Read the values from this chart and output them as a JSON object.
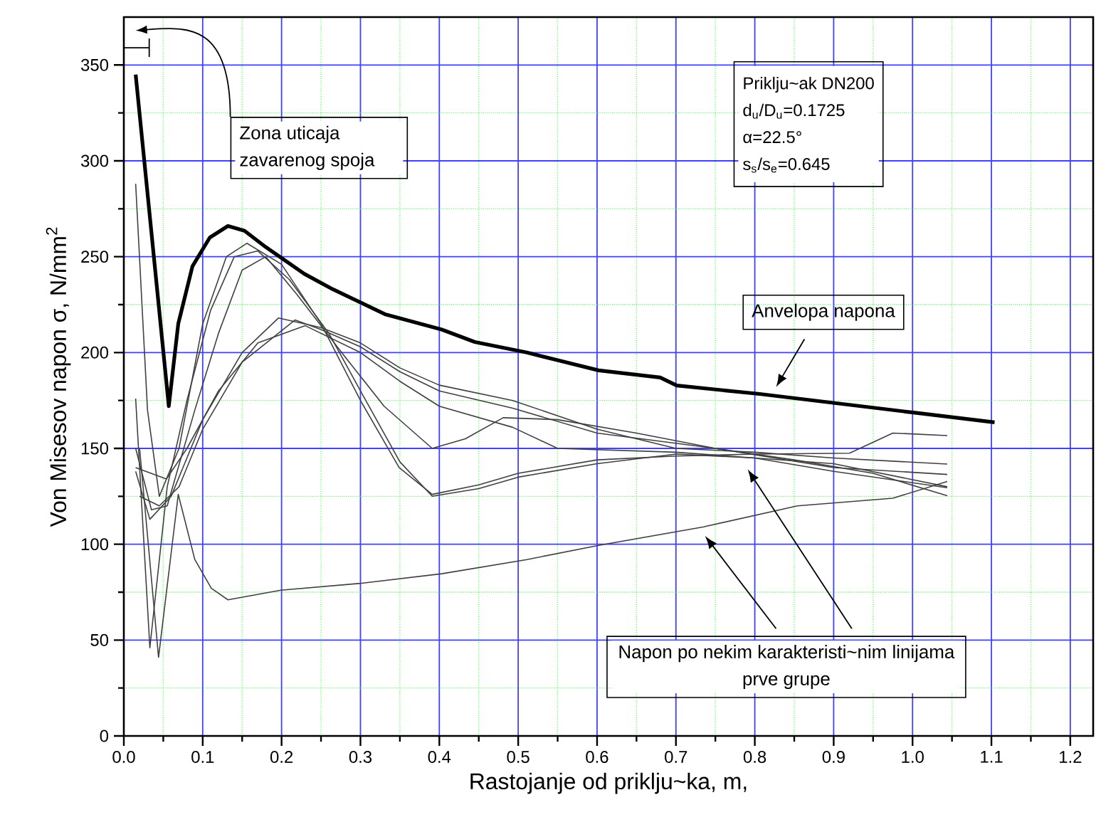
{
  "chart_data": {
    "type": "line",
    "xlabel": "Rastojanje od priklju~ka, m,",
    "ylabel": "Von Misesov napon σ, N/mm$^{2}$",
    "xlim": [
      0,
      1.229
    ],
    "ylim": [
      0,
      375
    ],
    "xticks": [
      {
        "value": 0,
        "label": "0.0"
      },
      {
        "value": 0.05,
        "label": null
      },
      0.1,
      {
        "value": 0.15,
        "label": null
      },
      0.2,
      {
        "value": 0.25,
        "label": null
      },
      0.3,
      {
        "value": 0.35,
        "label": null
      },
      0.4,
      {
        "value": 0.45,
        "label": null
      },
      0.5,
      {
        "value": 0.55,
        "label": null
      },
      0.6,
      {
        "value": 0.65,
        "label": null
      },
      0.7,
      {
        "value": 0.75,
        "label": null
      },
      0.8,
      {
        "value": 0.85,
        "label": null
      },
      0.9,
      {
        "value": 0.95,
        "label": null
      },
      {
        "value": 1,
        "label": "1.0"
      },
      {
        "value": 1.05,
        "label": null
      },
      1.1,
      {
        "value": 1.15,
        "label": null
      },
      1.2
    ],
    "yticks": [
      0,
      {
        "value": 25,
        "label": null
      },
      50,
      {
        "value": 75,
        "label": null
      },
      100,
      {
        "value": 125,
        "label": null
      },
      150,
      {
        "value": 175,
        "label": null
      },
      200,
      {
        "value": 225,
        "label": null
      },
      250,
      {
        "value": 275,
        "label": null
      },
      300,
      {
        "value": 325,
        "label": null
      },
      350
    ],
    "grid": true,
    "series": [
      {
        "color": "#000000",
        "x": [
          0.015,
          0.057,
          0.069,
          0.087,
          0.109,
          0.132,
          0.153,
          0.18,
          0.229,
          0.265,
          0.331,
          0.403,
          0.445,
          0.511,
          0.602,
          0.68,
          0.701,
          0.806,
          1.005,
          1.104
        ],
        "values": [
          345,
          172,
          215,
          245,
          260,
          266,
          263.5,
          255,
          241,
          233,
          220,
          212,
          205.5,
          200,
          190.7,
          187,
          182.8,
          178.4,
          168.5,
          163.6
        ]
      },
      {
        "color": "#404040",
        "x": [
          0.015,
          0.03,
          0.045,
          0.07,
          0.1,
          0.13,
          0.156,
          0.2,
          0.25,
          0.3,
          0.349,
          0.391,
          0.45,
          0.5,
          0.6,
          0.7,
          0.8,
          0.92,
          0.975,
          1.044
        ],
        "values": [
          288,
          170,
          125,
          150,
          215,
          250,
          257,
          246,
          215,
          175,
          140,
          126,
          131,
          137,
          144,
          146,
          147,
          147.5,
          158,
          156.7
        ]
      },
      {
        "color": "#404040",
        "x": [
          0.015,
          0.033,
          0.055,
          0.08,
          0.11,
          0.14,
          0.17,
          0.21,
          0.26,
          0.3,
          0.35,
          0.391,
          0.45,
          0.5,
          0.6,
          0.7,
          0.8,
          0.9,
          1.044
        ],
        "values": [
          176,
          46,
          130,
          175,
          222,
          250,
          253,
          238,
          210,
          180,
          143,
          125,
          129,
          135,
          142,
          147,
          145,
          138,
          129.5
        ]
      },
      {
        "color": "#404040",
        "x": [
          0.015,
          0.035,
          0.055,
          0.09,
          0.12,
          0.15,
          0.18,
          0.22,
          0.28,
          0.33,
          0.391,
          0.433,
          0.481,
          0.55,
          0.65,
          0.75,
          0.85,
          0.95,
          1.044
        ],
        "values": [
          150,
          118,
          120,
          170,
          210,
          243,
          250,
          230,
          198,
          172,
          150,
          155,
          166,
          165,
          158,
          150,
          144,
          137,
          125.3
        ]
      },
      {
        "color": "#404040",
        "x": [
          0.02,
          0.044,
          0.069,
          0.09,
          0.111,
          0.132,
          0.199,
          0.3,
          0.403,
          0.511,
          0.602,
          0.734,
          0.854,
          0.975,
          1.044
        ],
        "values": [
          150,
          41,
          126,
          92,
          77,
          71,
          76,
          79.6,
          84.6,
          92,
          99.4,
          109,
          120,
          124,
          132.7
        ]
      },
      {
        "color": "#404040",
        "x": [
          0.015,
          0.033,
          0.06,
          0.1,
          0.15,
          0.196,
          0.25,
          0.3,
          0.35,
          0.4,
          0.493,
          0.6,
          0.7,
          0.8,
          0.9,
          1.044
        ],
        "values": [
          138,
          113,
          125,
          165,
          200,
          218,
          213,
          205,
          192,
          183,
          175,
          160,
          150,
          148,
          145,
          141.8
        ]
      },
      {
        "color": "#404040",
        "x": [
          0.02,
          0.045,
          0.07,
          0.1,
          0.15,
          0.217,
          0.25,
          0.3,
          0.35,
          0.4,
          0.493,
          0.6,
          0.75,
          0.9,
          1.044
        ],
        "values": [
          125,
          120,
          130,
          160,
          195,
          217,
          212,
          203,
          190,
          180,
          171,
          158,
          150,
          140,
          136.4
        ]
      },
      {
        "color": "#404040",
        "x": [
          0.015,
          0.054,
          0.08,
          0.12,
          0.17,
          0.23,
          0.3,
          0.35,
          0.4,
          0.493,
          0.55,
          0.7,
          0.9,
          1.044
        ],
        "values": [
          140,
          134,
          150,
          180,
          205,
          214,
          200,
          185,
          172,
          161,
          150,
          148,
          142,
          130
        ]
      }
    ],
    "annotations": [
      "Zona uticaja zavarenog spoja",
      "Priklju~ak DN200",
      "d$_{u}$/D$_{u}$=0.1725",
      "α=22.5°",
      "s$_{s}$/s$_{e}$=0.645",
      {
        "text": "Anvelopa napona",
        "x": 0.827,
        "y": 182
      },
      "Napon po nekim karakteristi~nim linijama prve grupe"
    ]
  }
}
